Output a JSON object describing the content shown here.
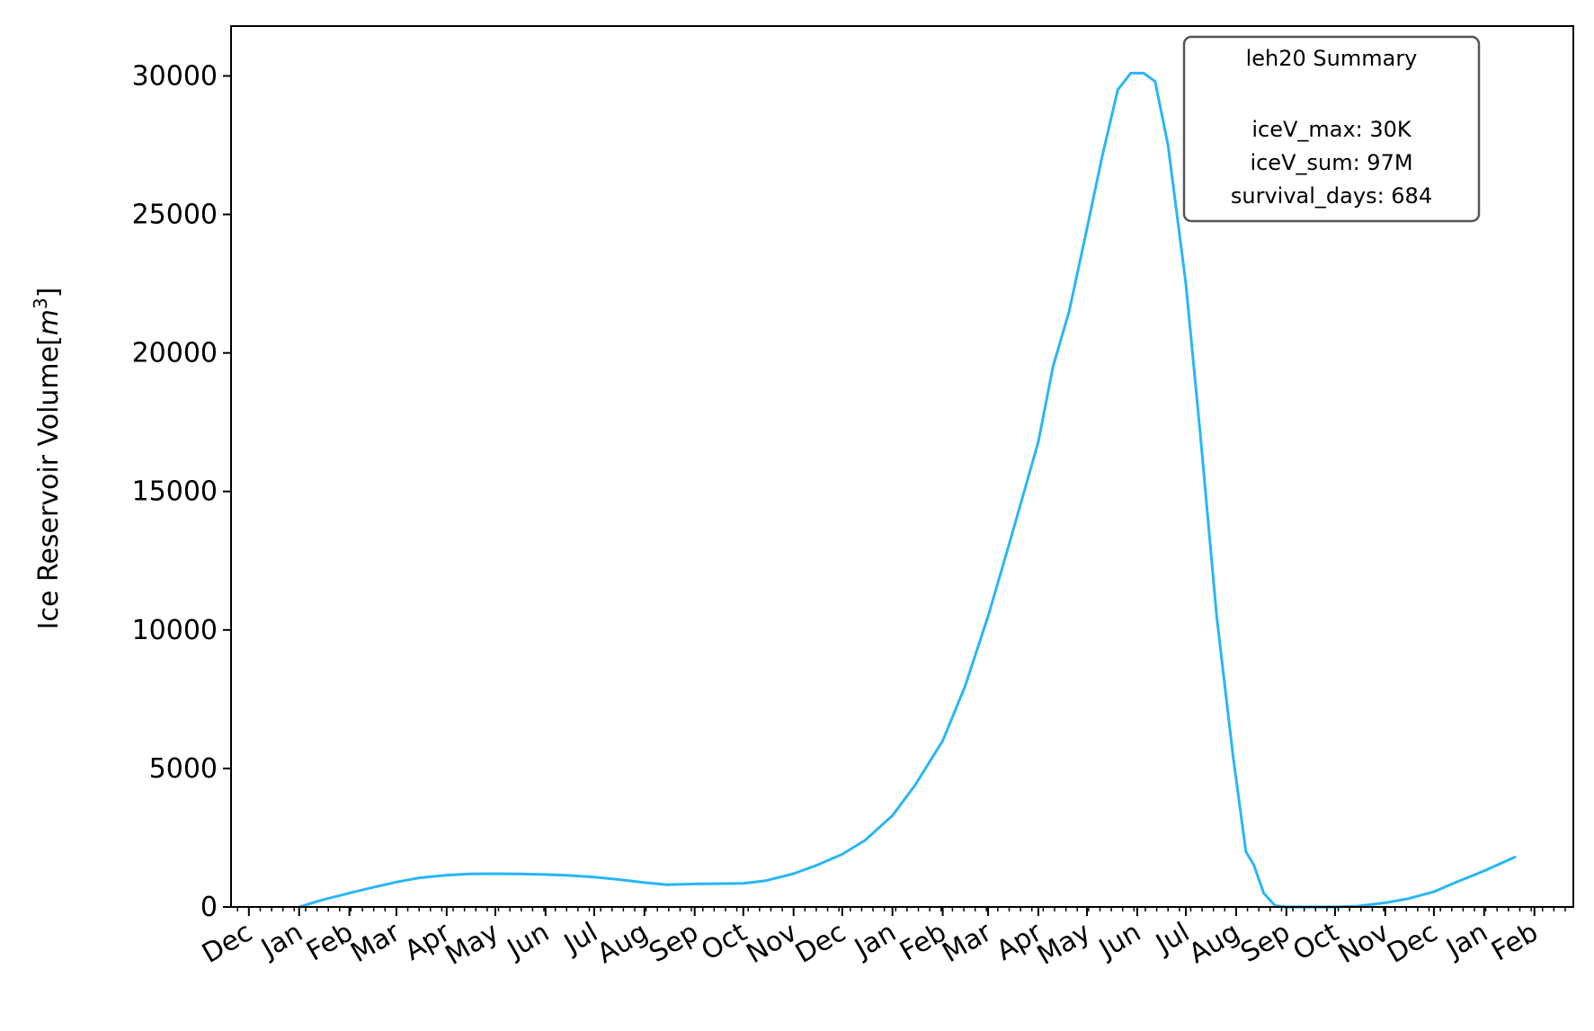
{
  "chart_data": {
    "type": "line",
    "title": "",
    "xlabel": "",
    "ylabel": "Ice Reservoir Volume",
    "ylabel_unit_base": "m",
    "ylabel_unit_exp": "3",
    "ylim": [
      0,
      31800
    ],
    "xlim": [
      "2019-11-20",
      "2022-02-25"
    ],
    "y_ticks": [
      0,
      5000,
      10000,
      15000,
      20000,
      25000,
      30000
    ],
    "x_ticks": [
      {
        "date": "2019-12-01",
        "label": "Dec"
      },
      {
        "date": "2020-01-01",
        "label": "Jan"
      },
      {
        "date": "2020-02-01",
        "label": "Feb"
      },
      {
        "date": "2020-03-01",
        "label": "Mar"
      },
      {
        "date": "2020-04-01",
        "label": "Apr"
      },
      {
        "date": "2020-05-01",
        "label": "May"
      },
      {
        "date": "2020-06-01",
        "label": "Jun"
      },
      {
        "date": "2020-07-01",
        "label": "Jul"
      },
      {
        "date": "2020-08-01",
        "label": "Aug"
      },
      {
        "date": "2020-09-01",
        "label": "Sep"
      },
      {
        "date": "2020-10-01",
        "label": "Oct"
      },
      {
        "date": "2020-11-01",
        "label": "Nov"
      },
      {
        "date": "2020-12-01",
        "label": "Dec"
      },
      {
        "date": "2021-01-01",
        "label": "Jan"
      },
      {
        "date": "2021-02-01",
        "label": "Feb"
      },
      {
        "date": "2021-03-01",
        "label": "Mar"
      },
      {
        "date": "2021-04-01",
        "label": "Apr"
      },
      {
        "date": "2021-05-01",
        "label": "May"
      },
      {
        "date": "2021-06-01",
        "label": "Jun"
      },
      {
        "date": "2021-07-01",
        "label": "Jul"
      },
      {
        "date": "2021-08-01",
        "label": "Aug"
      },
      {
        "date": "2021-09-01",
        "label": "Sep"
      },
      {
        "date": "2021-10-01",
        "label": "Oct"
      },
      {
        "date": "2021-11-01",
        "label": "Nov"
      },
      {
        "date": "2021-12-01",
        "label": "Dec"
      },
      {
        "date": "2022-01-01",
        "label": "Jan"
      },
      {
        "date": "2022-02-01",
        "label": "Feb"
      }
    ],
    "grid": false,
    "line_color": "#29b6f6",
    "series": [
      {
        "points": [
          [
            "2020-01-01",
            0
          ],
          [
            "2020-01-15",
            250
          ],
          [
            "2020-02-01",
            500
          ],
          [
            "2020-02-15",
            700
          ],
          [
            "2020-03-01",
            900
          ],
          [
            "2020-03-15",
            1050
          ],
          [
            "2020-04-01",
            1150
          ],
          [
            "2020-04-15",
            1190
          ],
          [
            "2020-05-01",
            1200
          ],
          [
            "2020-05-15",
            1190
          ],
          [
            "2020-06-01",
            1170
          ],
          [
            "2020-06-15",
            1140
          ],
          [
            "2020-07-01",
            1080
          ],
          [
            "2020-07-15",
            1000
          ],
          [
            "2020-08-01",
            880
          ],
          [
            "2020-08-15",
            800
          ],
          [
            "2020-09-01",
            830
          ],
          [
            "2020-09-15",
            840
          ],
          [
            "2020-10-01",
            850
          ],
          [
            "2020-10-15",
            950
          ],
          [
            "2020-11-01",
            1200
          ],
          [
            "2020-11-15",
            1500
          ],
          [
            "2020-12-01",
            1900
          ],
          [
            "2020-12-15",
            2400
          ],
          [
            "2021-01-01",
            3300
          ],
          [
            "2021-01-15",
            4400
          ],
          [
            "2021-02-01",
            6000
          ],
          [
            "2021-02-15",
            8000
          ],
          [
            "2021-03-01",
            10500
          ],
          [
            "2021-03-15",
            13300
          ],
          [
            "2021-04-01",
            16800
          ],
          [
            "2021-04-10",
            19500
          ],
          [
            "2021-04-20",
            21500
          ],
          [
            "2021-05-01",
            24500
          ],
          [
            "2021-05-10",
            27000
          ],
          [
            "2021-05-20",
            29500
          ],
          [
            "2021-05-28",
            30100
          ],
          [
            "2021-06-05",
            30100
          ],
          [
            "2021-06-12",
            29800
          ],
          [
            "2021-06-20",
            27500
          ],
          [
            "2021-07-01",
            22500
          ],
          [
            "2021-07-10",
            17000
          ],
          [
            "2021-07-20",
            10500
          ],
          [
            "2021-07-30",
            5500
          ],
          [
            "2021-08-07",
            2000
          ],
          [
            "2021-08-12",
            1500
          ],
          [
            "2021-08-18",
            500
          ],
          [
            "2021-08-25",
            50
          ],
          [
            "2021-09-01",
            0
          ],
          [
            "2021-10-01",
            0
          ],
          [
            "2021-10-15",
            30
          ],
          [
            "2021-11-01",
            150
          ],
          [
            "2021-11-15",
            300
          ],
          [
            "2021-12-01",
            550
          ],
          [
            "2021-12-15",
            900
          ],
          [
            "2022-01-01",
            1300
          ],
          [
            "2022-01-20",
            1800
          ]
        ]
      }
    ],
    "summary_box": {
      "title": "leh20 Summary",
      "lines": [
        "iceV_max: 30K",
        "iceV_sum: 97M",
        "survival_days: 684"
      ],
      "location": "upper-right"
    }
  }
}
